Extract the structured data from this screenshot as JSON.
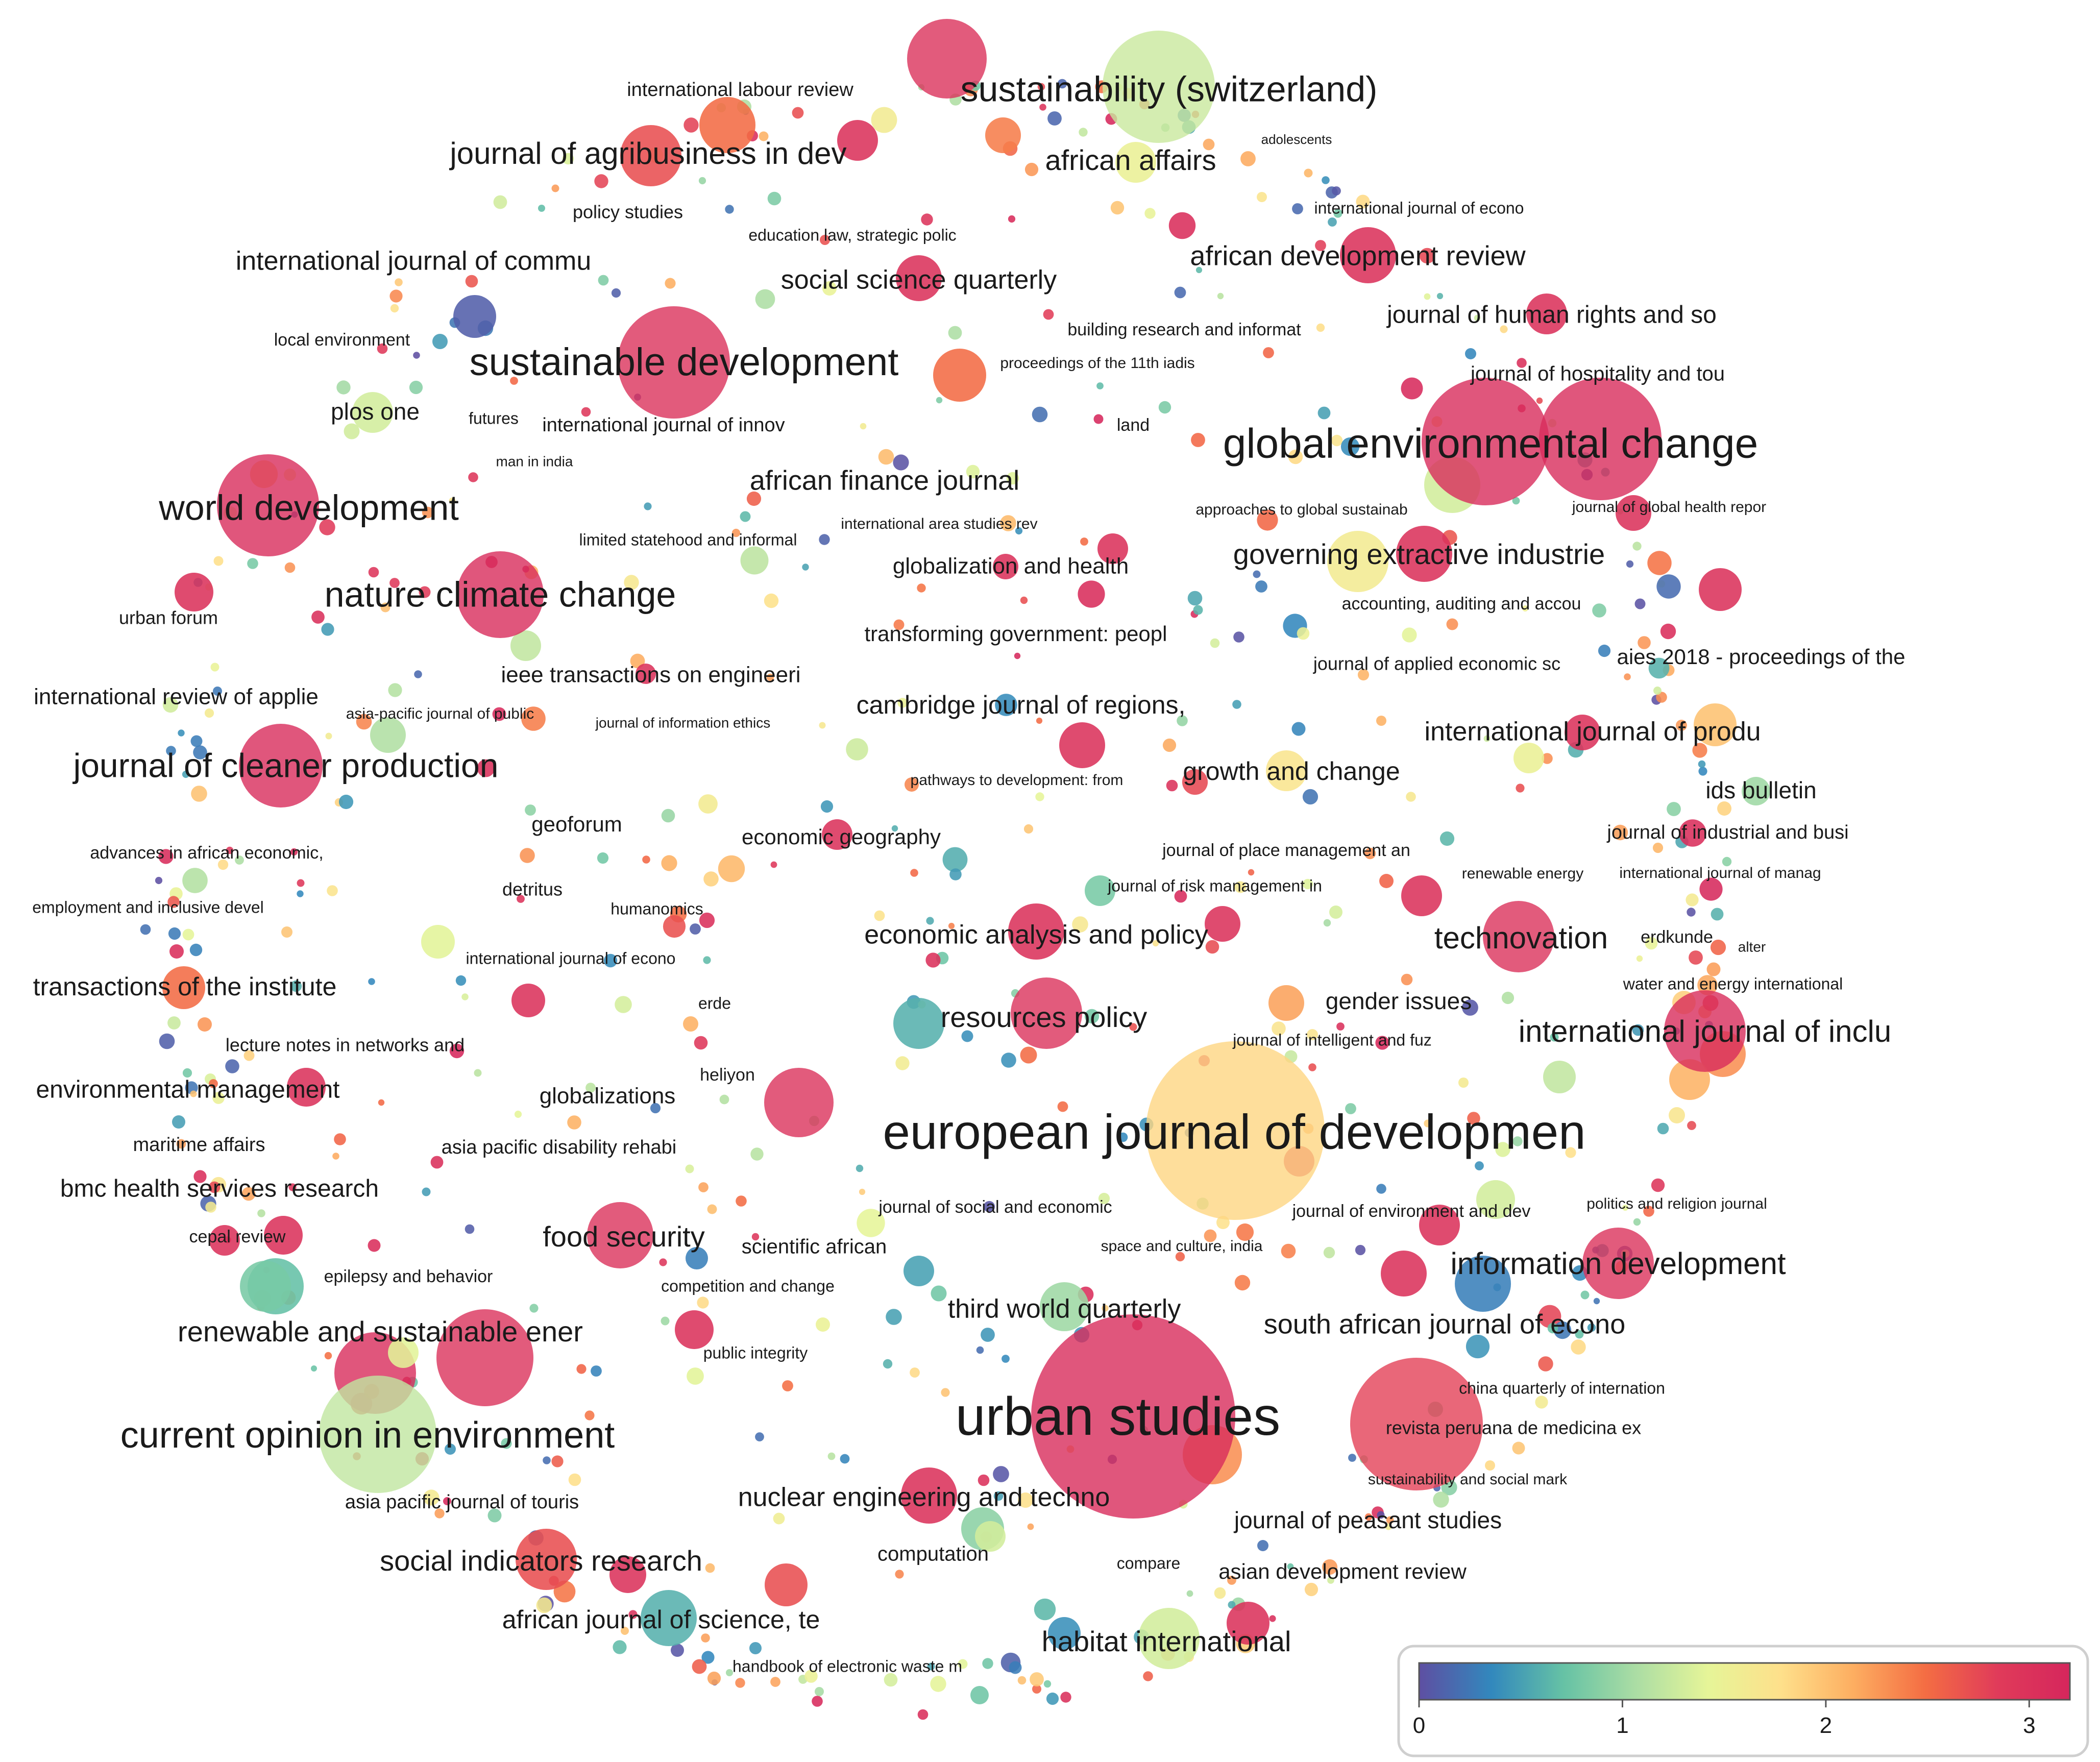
{
  "chart_data": {
    "type": "scatter",
    "title": "",
    "colorbar": {
      "min": 0,
      "max": 3.2,
      "ticks": [
        0,
        1,
        2,
        3
      ],
      "colors": [
        "#5e4fa2",
        "#3288bd",
        "#66c2a5",
        "#abdda4",
        "#e6f598",
        "#fee08b",
        "#fdae61",
        "#f46d43",
        "#e03b5a",
        "#d5265c"
      ]
    },
    "labels": [
      "sustainability (switzerland)",
      "international labour review",
      "journal of agribusiness in dev",
      "african affairs",
      "adolescents",
      "policy studies",
      "education law, strategic polic",
      "international journal of econo",
      "international journal of commu",
      "social science quarterly",
      "african development review",
      "journal of human rights and so",
      "local environment",
      "sustainable development",
      "building research and informat",
      "proceedings of the 11th iadis",
      "journal of hospitality and tou",
      "plos one",
      "futures",
      "international journal of innov",
      "land",
      "global environmental change",
      "man in india",
      "african finance journal",
      "world development",
      "international area studies rev",
      "approaches to global sustainab",
      "journal of global health repor",
      "limited statehood and informal",
      "globalization and health",
      "governing extractive industrie",
      "nature climate change",
      "accounting, auditing and accou",
      "urban forum",
      "transforming government: peopl",
      "ieee transactions on engineeri",
      "journal of applied economic sc",
      "aies 2018 - proceedings of the",
      "international review of applie",
      "asia-pacific journal of public",
      "journal of information ethics",
      "cambridge journal of regions,",
      "international journal of produ",
      "journal of cleaner production",
      "pathways to development: from",
      "growth and change",
      "ids bulletin",
      "geoforum",
      "economic geography",
      "journal of industrial and busi",
      "advances in african economic,",
      "journal of place management an",
      "detritus",
      "humanomics",
      "journal of risk management in",
      "renewable energy",
      "international journal of manag",
      "employment and inclusive devel",
      "economic analysis and policy",
      "technovation",
      "erdkunde",
      "alter",
      "international journal of econo",
      "water and energy international",
      "transactions of the institute",
      "erde",
      "gender issues",
      "resources policy",
      "international journal of inclu",
      "journal of intelligent and fuz",
      "lecture notes in networks and",
      "heliyon",
      "environmental management",
      "globalizations",
      "european journal of developmen",
      "maritime affairs",
      "asia pacific disability rehabi",
      "bmc health services research",
      "journal of social and economic",
      "politics and religion journal",
      "journal of environment and dev",
      "food security",
      "scientific african",
      "space and culture, india",
      "cepal review",
      "information development",
      "epilepsy and behavior",
      "competition and change",
      "third world quarterly",
      "south african journal of econo",
      "renewable and sustainable ener",
      "public integrity",
      "china quarterly of internation",
      "urban studies",
      "current opinion in environment",
      "revista peruana de medicina ex",
      "sustainability and social mark",
      "asia pacific journal of touris",
      "nuclear engineering and techno",
      "journal of peasant studies",
      "computation",
      "social indicators research",
      "compare",
      "asian development review",
      "african journal of science, te",
      "habitat international",
      "handbook of electronic waste m"
    ]
  }
}
